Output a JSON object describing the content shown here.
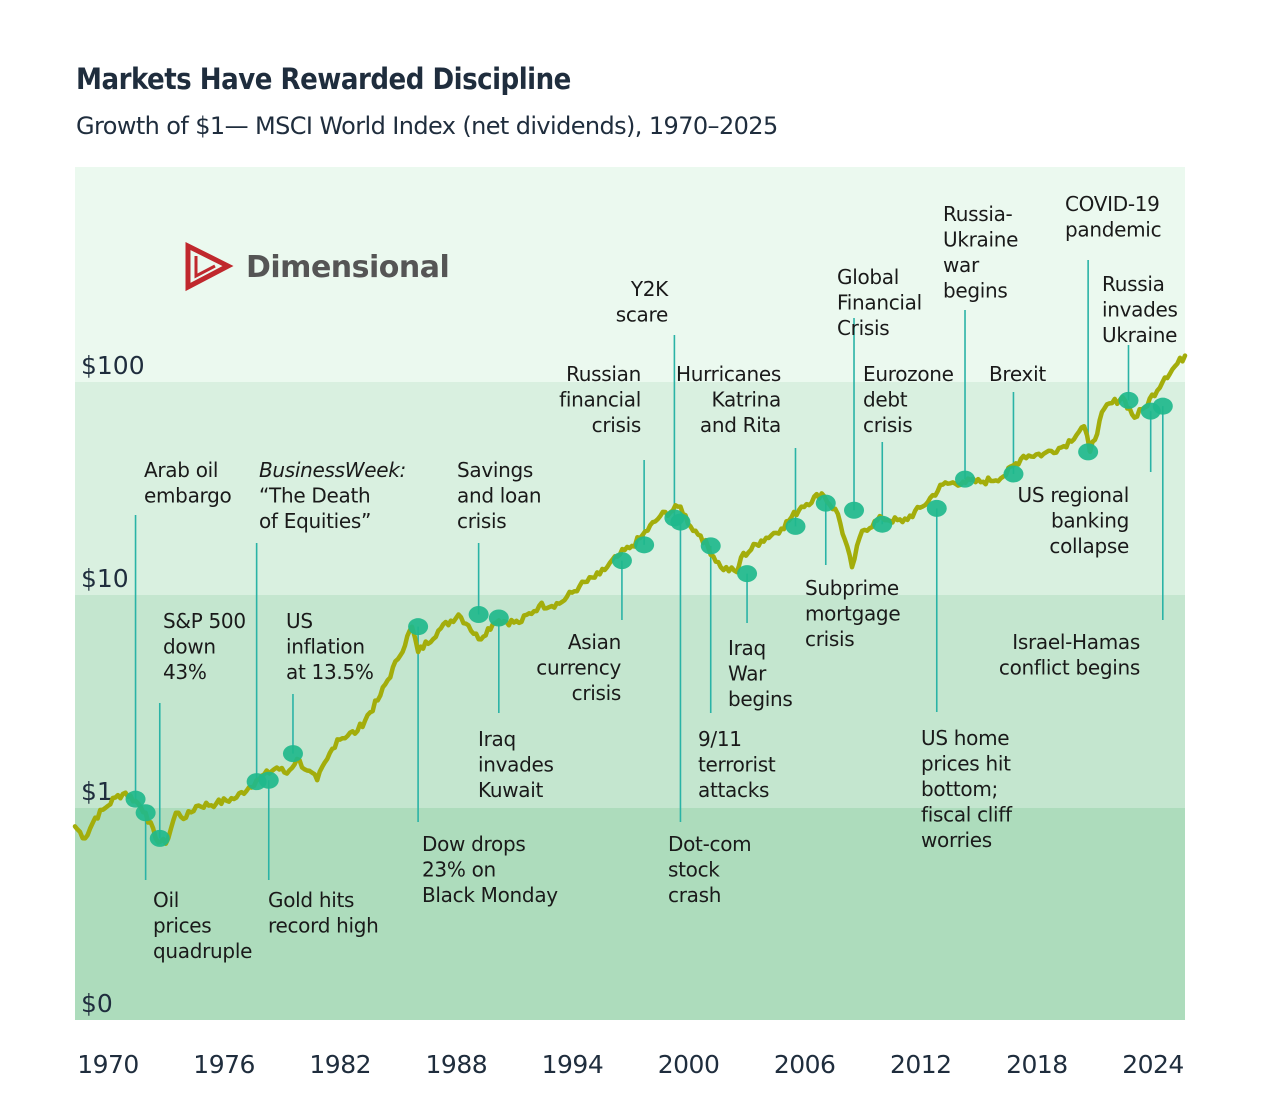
{
  "header": {
    "title": "Markets Have Rewarded Discipline",
    "subtitle": "Growth of $1— MSCI World Index (net dividends), 1970–2025"
  },
  "logo": {
    "name": "Dimensional",
    "icon": "dimensional-triangle-logo-icon",
    "color": "#c0282d"
  },
  "colors": {
    "band_top": "#ebf9ef",
    "band_2": "#d9f0e0",
    "band_3": "#c4e6cf",
    "band_bottom": "#addcbc",
    "line": "#a3ad0b",
    "dot": "#1fb88c",
    "leader": "#2ab3a6"
  },
  "chart_data": {
    "type": "line",
    "title": "Markets Have Rewarded Discipline",
    "subtitle": "Growth of $1— MSCI World Index (net dividends), 1970–2025",
    "xlabel": "",
    "ylabel": "",
    "yscale": "log",
    "xlim": [
      1970,
      2025
    ],
    "ylim": [
      0.1,
      1000
    ],
    "grid": false,
    "y_ticks": [
      {
        "label": "$100",
        "value": 100
      },
      {
        "label": "$10",
        "value": 10
      },
      {
        "label": "$1",
        "value": 1
      },
      {
        "label": "$0",
        "value": 0.1
      }
    ],
    "x_ticks": [
      "1970",
      "1976",
      "1982",
      "1988",
      "1994",
      "2000",
      "2006",
      "2012",
      "2018",
      "2024"
    ],
    "series": [
      {
        "name": "MSCI World Index (net dividends)",
        "x": [
          1970,
          1970.5,
          1971,
          1971.5,
          1972,
          1972.5,
          1973,
          1973.5,
          1974,
          1974.5,
          1975,
          1975.5,
          1976,
          1977,
          1978,
          1979,
          1980,
          1980.5,
          1981,
          1981.5,
          1982,
          1982.5,
          1983,
          1984,
          1985,
          1986,
          1986.7,
          1987,
          1988,
          1989,
          1989.5,
          1990,
          1990.7,
          1991,
          1992,
          1993,
          1994,
          1995,
          1996,
          1997,
          1997.6,
          1998,
          1999,
          2000,
          2000.5,
          2001,
          2002,
          2002.8,
          2003,
          2004,
          2005,
          2006,
          2007,
          2007.8,
          2008.5,
          2009,
          2010,
          2011,
          2012,
          2013,
          2014,
          2015,
          2016,
          2017,
          2018,
          2019,
          2020,
          2020.3,
          2021,
          2021.9,
          2022.5,
          2023,
          2024,
          2025
        ],
        "y": [
          0.82,
          0.72,
          0.9,
          1.0,
          1.12,
          1.18,
          1.08,
          0.95,
          0.72,
          0.68,
          0.95,
          0.9,
          1.02,
          1.05,
          1.12,
          1.35,
          1.55,
          1.45,
          1.7,
          1.5,
          1.35,
          1.7,
          2.1,
          2.3,
          3.2,
          5.0,
          7.1,
          5.4,
          6.8,
          8.1,
          7.2,
          6.2,
          7.3,
          7.6,
          7.4,
          8.9,
          9.1,
          11.0,
          12.5,
          15.5,
          17.0,
          18.5,
          23.5,
          26.0,
          21.0,
          19.0,
          13.5,
          12.8,
          15.0,
          18.0,
          20.5,
          26.0,
          30.0,
          24.0,
          13.5,
          20.0,
          23.0,
          22.0,
          26.0,
          33.0,
          34.0,
          34.0,
          36.0,
          45.0,
          46.0,
          50.0,
          62.0,
          47.0,
          75.0,
          85.0,
          68.0,
          76.0,
          105.0,
          133.0
        ]
      }
    ],
    "events": [
      {
        "label": [
          "Arab oil",
          "embargo"
        ],
        "year": 1973.0,
        "value": 1.1,
        "side": "above",
        "anchor": "start"
      },
      {
        "label": [
          "Oil",
          "prices",
          "quadruple"
        ],
        "year": 1973.5,
        "value": 0.95,
        "side": "below",
        "anchor": "start"
      },
      {
        "label": [
          "S&P 500",
          "down",
          "43%"
        ],
        "year": 1974.2,
        "value": 0.72,
        "side": "above",
        "anchor": "start"
      },
      {
        "label": [
          "BusinessWeek:",
          "“The Death",
          "of Equities”"
        ],
        "year": 1979.0,
        "value": 1.33,
        "side": "above",
        "anchor": "start",
        "italic_first": true
      },
      {
        "label": [
          "Gold hits",
          "record high"
        ],
        "year": 1979.6,
        "value": 1.35,
        "side": "below",
        "anchor": "start"
      },
      {
        "label": [
          "US",
          "inflation",
          "at 13.5%"
        ],
        "year": 1980.8,
        "value": 1.8,
        "side": "above",
        "anchor": "start"
      },
      {
        "label": [
          "Dow drops",
          "23% on",
          "Black Monday"
        ],
        "year": 1987.0,
        "value": 7.1,
        "side": "below",
        "anchor": "start"
      },
      {
        "label": [
          "Savings",
          "and loan",
          "crisis"
        ],
        "year": 1990.0,
        "value": 8.1,
        "side": "above",
        "anchor": "start"
      },
      {
        "label": [
          "Iraq",
          "invades",
          "Kuwait"
        ],
        "year": 1991.0,
        "value": 7.8,
        "side": "below",
        "anchor": "start"
      },
      {
        "label": [
          "Asian",
          "currency",
          "crisis"
        ],
        "year": 1997.1,
        "value": 14.5,
        "side": "below",
        "anchor": "end"
      },
      {
        "label": [
          "Russian",
          "financial",
          "crisis"
        ],
        "year": 1998.2,
        "value": 17.2,
        "side": "above",
        "anchor": "end"
      },
      {
        "label": [
          "Y2K",
          "scare"
        ],
        "year": 1999.7,
        "value": 23.0,
        "side": "above",
        "anchor": "end"
      },
      {
        "label": [
          "Dot-com",
          "stock",
          "crash"
        ],
        "year": 2000.0,
        "value": 22.0,
        "side": "below",
        "anchor": "start"
      },
      {
        "label": [
          "9/11",
          "terrorist",
          "attacks"
        ],
        "year": 2001.5,
        "value": 17.0,
        "side": "below",
        "anchor": "start"
      },
      {
        "label": [
          "Iraq",
          "War",
          "begins"
        ],
        "year": 2003.3,
        "value": 12.6,
        "side": "below",
        "anchor": "start"
      },
      {
        "label": [
          "Hurricanes",
          "Katrina",
          "and Rita"
        ],
        "year": 2005.7,
        "value": 21.0,
        "side": "above",
        "anchor": "end"
      },
      {
        "label": [
          "Subprime",
          "mortgage",
          "crisis"
        ],
        "year": 2007.2,
        "value": 27.0,
        "side": "below",
        "anchor": "start"
      },
      {
        "label": [
          "Global",
          "Financial",
          "Crisis"
        ],
        "year": 2008.6,
        "value": 25.0,
        "side": "above",
        "anchor": "start"
      },
      {
        "label": [
          "Eurozone",
          "debt",
          "crisis"
        ],
        "year": 2010.0,
        "value": 21.5,
        "side": "above",
        "anchor": "start"
      },
      {
        "label": [
          "US home",
          "prices hit",
          "bottom;",
          "fiscal cliff",
          "worries"
        ],
        "year": 2012.7,
        "value": 25.5,
        "side": "below",
        "anchor": "start"
      },
      {
        "label": [
          "Russia-",
          "Ukraine",
          "war",
          "begins"
        ],
        "year": 2014.1,
        "value": 35.0,
        "side": "above",
        "anchor": "start"
      },
      {
        "label": [
          "Brexit"
        ],
        "year": 2016.5,
        "value": 37.0,
        "side": "above",
        "anchor": "start"
      },
      {
        "label": [
          "COVID-19",
          "pandemic"
        ],
        "year": 2020.2,
        "value": 47.0,
        "side": "above",
        "anchor": "start"
      },
      {
        "label": [
          "Russia",
          "invades",
          "Ukraine"
        ],
        "year": 2022.2,
        "value": 82.0,
        "side": "above",
        "anchor": "start"
      },
      {
        "label": [
          "US regional",
          "banking",
          "collapse"
        ],
        "year": 2023.3,
        "value": 73.0,
        "side": "below",
        "anchor": "end"
      },
      {
        "label": [
          "Israel-Hamas",
          "conflict begins"
        ],
        "year": 2023.9,
        "value": 77.0,
        "side": "below",
        "anchor": "end"
      }
    ]
  }
}
